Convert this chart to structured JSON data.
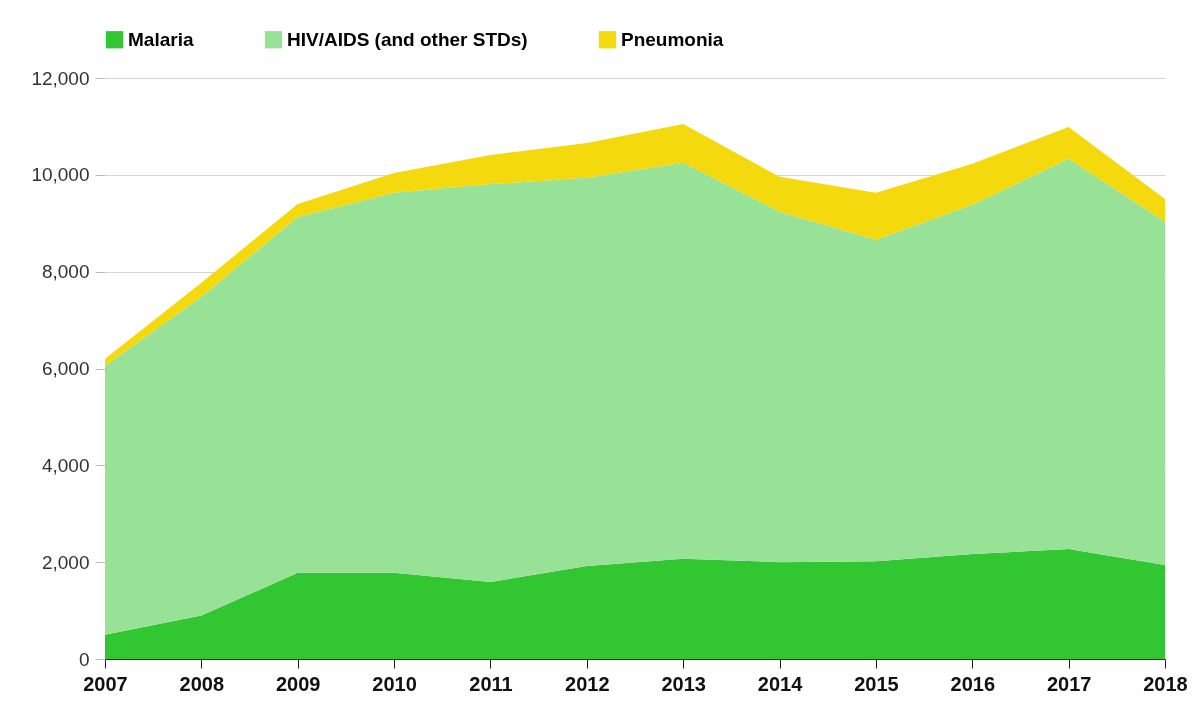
{
  "chart_data": {
    "type": "area",
    "stacked": true,
    "x": [
      2007,
      2008,
      2009,
      2010,
      2011,
      2012,
      2013,
      2014,
      2015,
      2016,
      2017,
      2018
    ],
    "series": [
      {
        "name": "Malaria",
        "color": "#33c633",
        "values": [
          500,
          900,
          1780,
          1780,
          1590,
          1920,
          2070,
          2000,
          2020,
          2170,
          2270,
          1940
        ]
      },
      {
        "name": "HIV/AIDS (and other STDs)",
        "color": "#98e298",
        "values": [
          5550,
          6580,
          7350,
          7850,
          8220,
          8020,
          8180,
          7240,
          6640,
          7210,
          8060,
          7090
        ]
      },
      {
        "name": "Pneumonia",
        "color": "#f5d90f",
        "values": [
          150,
          290,
          270,
          410,
          600,
          720,
          800,
          720,
          970,
          850,
          660,
          470
        ]
      }
    ],
    "xlim": [
      2007,
      2018
    ],
    "xticks": [
      2007,
      2008,
      2009,
      2010,
      2011,
      2012,
      2013,
      2014,
      2015,
      2016,
      2017,
      2018
    ],
    "ylim": [
      0,
      12000
    ],
    "yticks": [
      {
        "value": 0,
        "label": "0"
      },
      {
        "value": 2000,
        "label": "2,000"
      },
      {
        "value": 4000,
        "label": "4,000"
      },
      {
        "value": 6000,
        "label": "6,000"
      },
      {
        "value": 8000,
        "label": "8,000"
      },
      {
        "value": 10000,
        "label": "10,000"
      },
      {
        "value": 12000,
        "label": "12,000"
      }
    ],
    "grid": "y",
    "legend": "top"
  }
}
